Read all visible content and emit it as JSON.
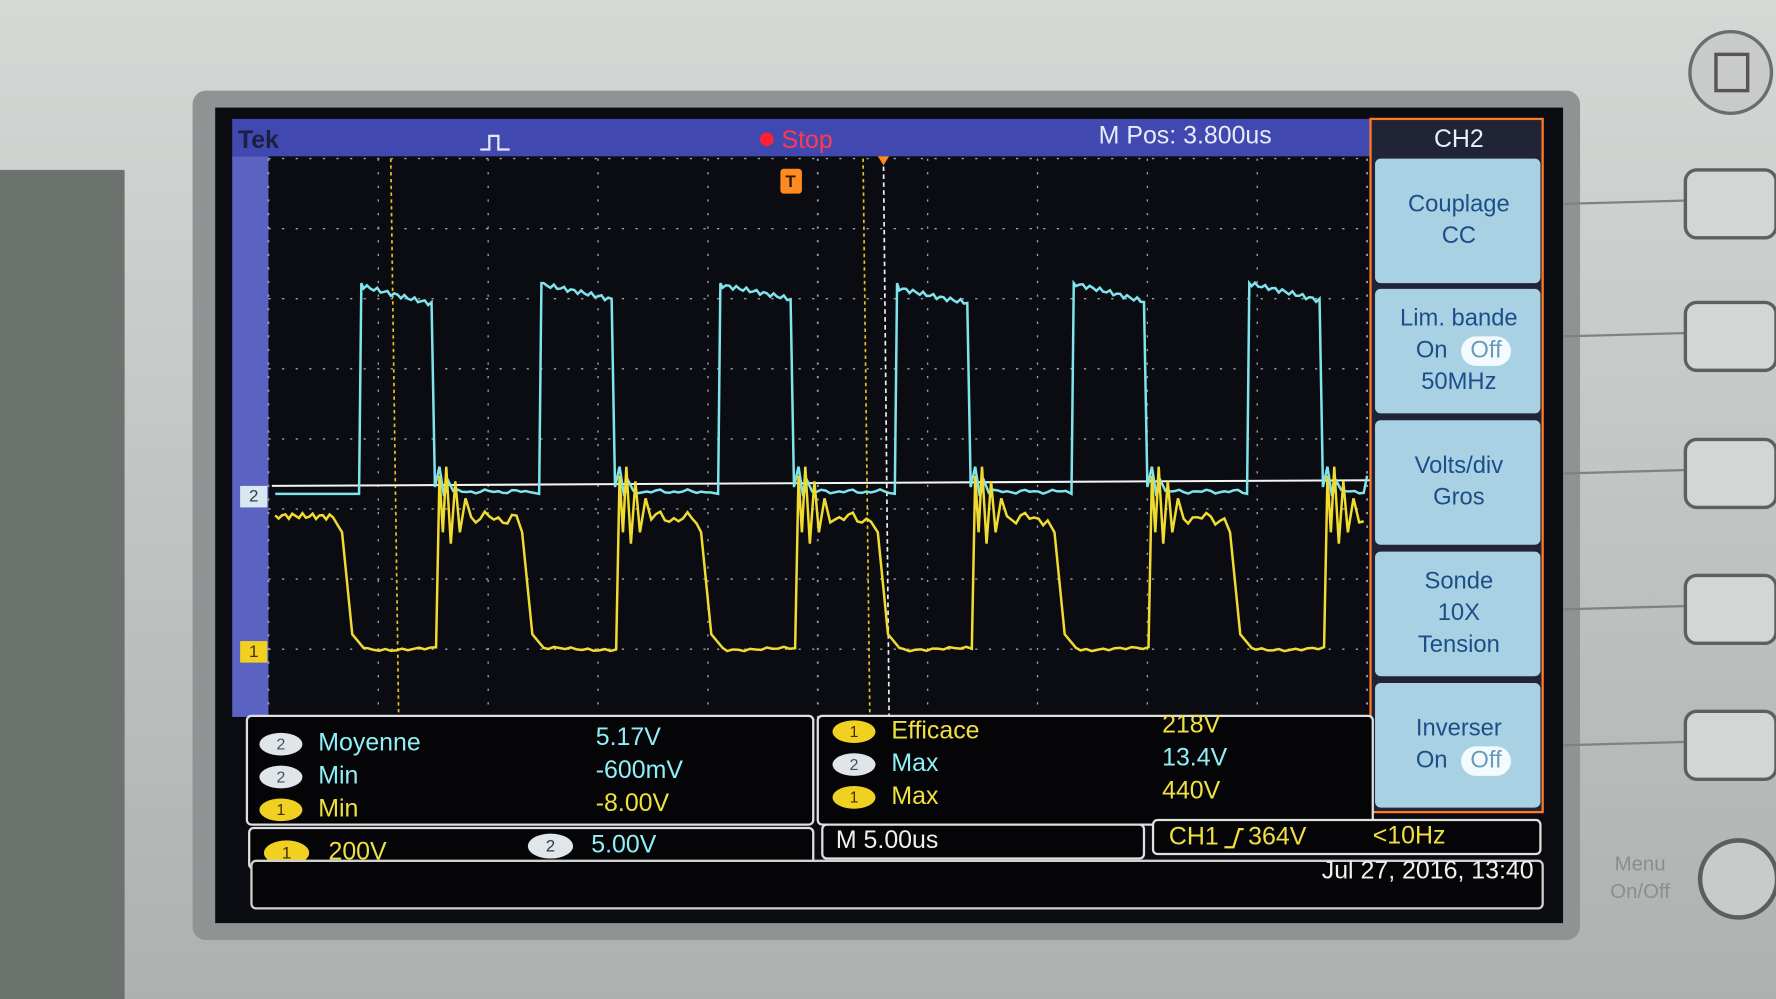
{
  "header": {
    "brand": "Tek",
    "status": "Stop",
    "position": "M Pos: 3.800us"
  },
  "markers": {
    "ch2": "2",
    "ch1": "1",
    "trigger": "T"
  },
  "menu": {
    "title": "CH2",
    "items": [
      {
        "label": "Couplage",
        "value": "CC"
      },
      {
        "label": "Lim. bande",
        "on": "On",
        "off": "Off",
        "value": "50MHz"
      },
      {
        "label": "Volts/div",
        "value": "Gros"
      },
      {
        "label": "Sonde",
        "value": "10X",
        "detail": "Tension"
      },
      {
        "label": "Inverser",
        "on": "On",
        "off": "Off"
      }
    ]
  },
  "measurements": [
    {
      "channel": "2",
      "name": "Moyenne",
      "value": "5.17V"
    },
    {
      "channel": "2",
      "name": "Min",
      "value": "-600mV"
    },
    {
      "channel": "1",
      "name": "Min",
      "value": "-8.00V"
    },
    {
      "channel": "1",
      "name": "Efficace",
      "value": "218V"
    },
    {
      "channel": "2",
      "name": "Max",
      "value": "13.4V"
    },
    {
      "channel": "1",
      "name": "Max",
      "value": "440V"
    }
  ],
  "status_bar": {
    "ch1": "1",
    "ch1_scale": "200V",
    "ch2": "2",
    "ch2_scale": "5.00V",
    "timebase": "M 5.00us",
    "trigger_source": "CH1",
    "trigger_level": "364V",
    "frequency": "<10Hz",
    "datetime": "Jul 27, 2016, 13:40"
  },
  "bezel": {
    "menu": "Menu",
    "onoff": "On/Off"
  }
}
